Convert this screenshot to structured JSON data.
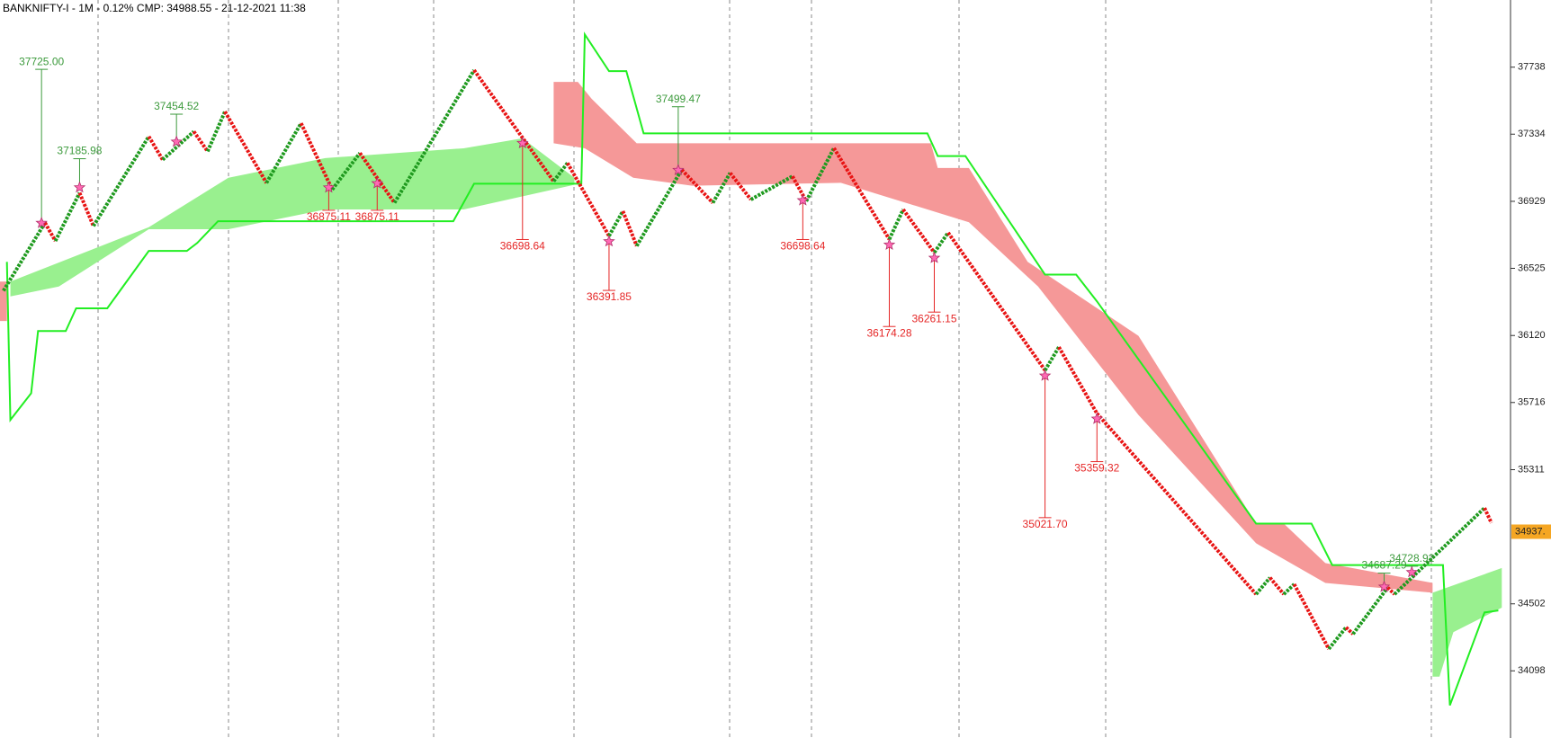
{
  "chart_data": {
    "type": "renko",
    "title": "BANKNIFTY-I - 1M - 0.12% CMP: 34988.55 - 21-12-2021 11:38",
    "xlim": [
      0,
      436
    ],
    "ylim": [
      33693,
      38143
    ],
    "yticks": [
      37738,
      37334,
      36929,
      36525,
      36120,
      35716,
      35311,
      34502,
      34098
    ],
    "series": [
      {
        "name": "price",
        "up_color": "#1f9a1f",
        "down_color": "#e81414",
        "x": [
          1,
          13,
          16,
          23,
          27,
          43,
          47,
          56,
          60,
          65,
          77,
          87,
          96,
          104,
          114,
          137,
          160,
          164,
          176,
          180,
          184,
          197,
          206,
          211,
          217,
          229,
          233,
          241,
          257,
          261,
          270,
          274,
          302,
          306,
          317,
          363,
          367,
          371,
          374,
          384,
          389,
          391,
          401,
          403,
          429,
          431
        ],
        "values": [
          36390,
          36800,
          36690,
          36980,
          36780,
          37320,
          37180,
          37350,
          37230,
          37470,
          37040,
          37400,
          37000,
          37220,
          36920,
          37720,
          37050,
          37160,
          36720,
          36870,
          36660,
          37120,
          36920,
          37100,
          36940,
          37080,
          36930,
          37250,
          36700,
          36880,
          36620,
          36740,
          35910,
          36050,
          35650,
          34560,
          34660,
          34560,
          34620,
          34230,
          34360,
          34320,
          34600,
          34560,
          35080,
          34990
        ]
      },
      {
        "name": "trail",
        "color": "#22ee22",
        "x": [
          2,
          3,
          9,
          11,
          19,
          22,
          31,
          43,
          54,
          57,
          63,
          131,
          137,
          168,
          169,
          176,
          181,
          186,
          268,
          271,
          279,
          302,
          311,
          317,
          363,
          379,
          385,
          417,
          419,
          429,
          433
        ],
        "values": [
          36564,
          35611,
          35772,
          36147,
          36147,
          36284,
          36284,
          36630,
          36630,
          36678,
          36809,
          36809,
          37035,
          37035,
          37935,
          37714,
          37714,
          37339,
          37339,
          37202,
          37202,
          36487,
          36487,
          36326,
          34986,
          34986,
          34736,
          34736,
          33890,
          34450,
          34462
        ]
      }
    ],
    "clouds": [
      {
        "color": "#f59898",
        "x": [
          0,
          2,
          2,
          0
        ],
        "values": [
          36445,
          36445,
          36207,
          36207
        ]
      },
      {
        "color": "#99f08f",
        "x": [
          3,
          43,
          66,
          94,
          134,
          151,
          166,
          166,
          134,
          94,
          66,
          43,
          17,
          3
        ],
        "values": [
          36445,
          36773,
          37071,
          37190,
          37249,
          37309,
          37071,
          37029,
          36880,
          36880,
          36761,
          36761,
          36415,
          36356
        ]
      },
      {
        "color": "#f59898",
        "x": [
          160,
          167,
          171,
          184,
          269,
          271,
          280,
          297,
          329,
          363,
          371,
          383,
          414,
          414,
          383,
          363,
          329,
          300,
          280,
          243,
          200,
          183,
          169,
          160
        ],
        "values": [
          37649,
          37649,
          37547,
          37279,
          37279,
          37130,
          37130,
          36564,
          36118,
          34986,
          34986,
          34748,
          34628,
          34569,
          34628,
          34867,
          35641,
          36415,
          36803,
          37041,
          37023,
          37071,
          37249,
          37279
        ]
      },
      {
        "color": "#99f08f",
        "x": [
          414,
          434,
          434,
          420,
          416,
          414
        ],
        "values": [
          34569,
          34718,
          34479,
          34331,
          34063,
          34063
        ]
      }
    ],
    "highs": {
      "color": "#3c9a3c",
      "x": [
        12,
        23,
        51,
        196,
        400,
        408
      ],
      "values": [
        37725.0,
        37185.98,
        37454.52,
        37499.47,
        34687.29,
        34728.92
      ],
      "value_labels": [
        "37725.00",
        "37185.98",
        "37454.52",
        "37499.47",
        "34687.29",
        "34728.92"
      ]
    },
    "lows": {
      "color": "#e52626",
      "x": [
        95,
        109,
        151,
        176,
        232,
        257,
        270,
        302,
        317
      ],
      "values": [
        36875.11,
        36875.11,
        36698.64,
        36391.85,
        36698.64,
        36174.28,
        36261.15,
        35021.7,
        35359.32
      ],
      "value_labels": [
        "36875.11",
        "36875.11",
        "36698.64",
        "36391.85",
        "36698.64",
        "36174.28",
        "36261.15",
        "35021.70",
        "35359.32"
      ]
    },
    "last_price": {
      "value": 34937,
      "label": "34937.",
      "color": "#f5a623"
    }
  }
}
